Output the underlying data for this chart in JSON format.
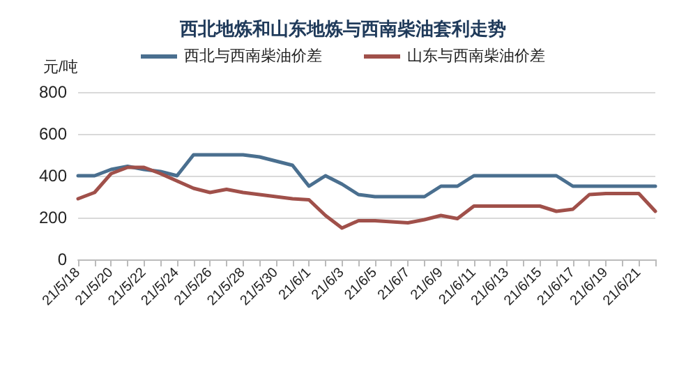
{
  "chart_data": {
    "type": "line",
    "title": "西北地炼和山东地炼与西南柴油套利走势",
    "ylabel": "元/吨",
    "categories": [
      "21/5/18",
      null,
      "21/5/20",
      null,
      "21/5/22",
      null,
      "21/5/24",
      null,
      "21/5/26",
      null,
      "21/5/28",
      null,
      "21/5/30",
      null,
      "21/6/1",
      null,
      "21/6/3",
      null,
      "21/6/5",
      null,
      "21/6/7",
      null,
      "21/6/9",
      null,
      "21/6/11",
      null,
      "21/6/13",
      null,
      "21/6/15",
      null,
      "21/6/17",
      null,
      "21/6/19",
      null,
      "21/6/21",
      null
    ],
    "series": [
      {
        "name": "西北与西南柴油价差",
        "color": "#4a6f8f",
        "values": [
          400,
          400,
          430,
          445,
          430,
          420,
          400,
          500,
          500,
          500,
          500,
          490,
          470,
          450,
          350,
          400,
          360,
          310,
          300,
          300,
          300,
          300,
          350,
          350,
          400,
          400,
          400,
          400,
          400,
          400,
          350,
          350,
          350,
          350,
          350,
          350
        ]
      },
      {
        "name": "山东与西南柴油价差",
        "color": "#a0504a",
        "values": [
          290,
          320,
          410,
          440,
          440,
          410,
          375,
          340,
          320,
          335,
          320,
          310,
          300,
          290,
          285,
          210,
          150,
          185,
          185,
          180,
          175,
          190,
          210,
          195,
          255,
          255,
          255,
          255,
          255,
          230,
          240,
          310,
          315,
          315,
          315,
          230
        ]
      }
    ],
    "ylim": [
      0,
      800
    ],
    "yticks": [
      0,
      200,
      400,
      600,
      800
    ],
    "grid": "y",
    "legend": "top",
    "marker": "none",
    "line_style": "solid"
  }
}
